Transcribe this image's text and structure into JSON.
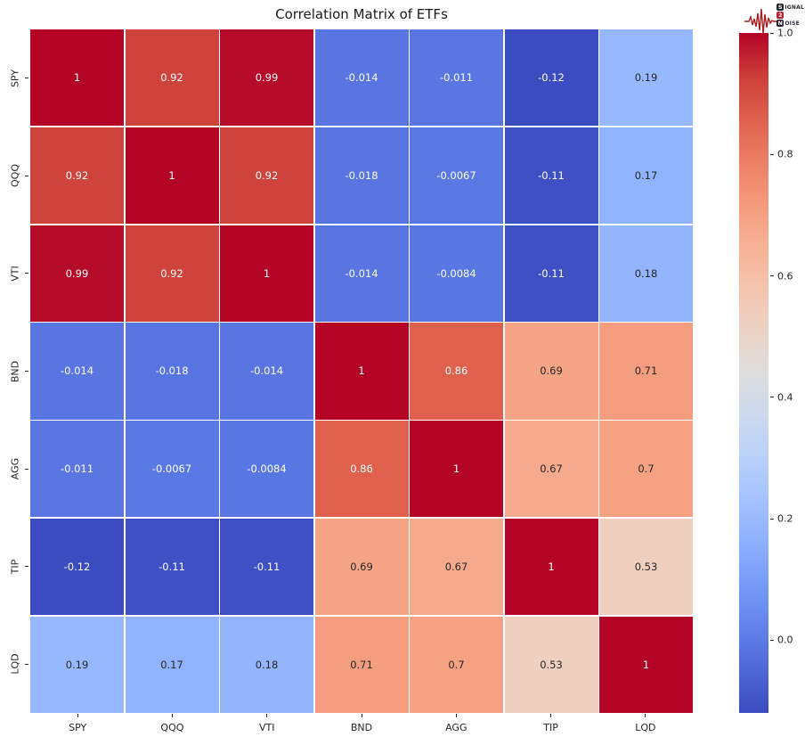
{
  "chart_data": {
    "type": "heatmap",
    "title": "Correlation Matrix of ETFs",
    "x_labels": [
      "SPY",
      "QQQ",
      "VTI",
      "BND",
      "AGG",
      "TIP",
      "LQD"
    ],
    "y_labels": [
      "SPY",
      "QQQ",
      "VTI",
      "BND",
      "AGG",
      "TIP",
      "LQD"
    ],
    "matrix": [
      [
        1,
        0.92,
        0.99,
        -0.014,
        -0.011,
        -0.12,
        0.19
      ],
      [
        0.92,
        1,
        0.92,
        -0.018,
        -0.0067,
        -0.11,
        0.17
      ],
      [
        0.99,
        0.92,
        1,
        -0.014,
        -0.0084,
        -0.11,
        0.18
      ],
      [
        -0.014,
        -0.018,
        -0.014,
        1,
        0.86,
        0.69,
        0.71
      ],
      [
        -0.011,
        -0.0067,
        -0.0084,
        0.86,
        1,
        0.67,
        0.7
      ],
      [
        -0.12,
        -0.11,
        -0.11,
        0.69,
        0.67,
        1,
        0.53
      ],
      [
        0.19,
        0.17,
        0.18,
        0.71,
        0.7,
        0.53,
        1
      ]
    ],
    "vmin": -0.12,
    "vmax": 1.0,
    "colormap": "coolwarm",
    "colormap_stops": [
      {
        "t": 0.0,
        "color": "#3b4cc0"
      },
      {
        "t": 0.0625,
        "color": "#4d68d7"
      },
      {
        "t": 0.125,
        "color": "#6282ea"
      },
      {
        "t": 0.1875,
        "color": "#779af7"
      },
      {
        "t": 0.25,
        "color": "#8db0fe"
      },
      {
        "t": 0.3125,
        "color": "#a3c2ff"
      },
      {
        "t": 0.375,
        "color": "#b8d0f9"
      },
      {
        "t": 0.4375,
        "color": "#ccd9ee"
      },
      {
        "t": 0.5,
        "color": "#dddddd"
      },
      {
        "t": 0.5625,
        "color": "#ecd3c5"
      },
      {
        "t": 0.625,
        "color": "#f5c4ad"
      },
      {
        "t": 0.6875,
        "color": "#f7b194"
      },
      {
        "t": 0.75,
        "color": "#f49a7b"
      },
      {
        "t": 0.8125,
        "color": "#ec7f63"
      },
      {
        "t": 0.875,
        "color": "#de604d"
      },
      {
        "t": 0.9375,
        "color": "#cb3e38"
      },
      {
        "t": 1.0,
        "color": "#b40426"
      }
    ],
    "colorbar_tick_labels": [
      "1.0",
      "0.8",
      "0.6",
      "0.4",
      "0.2",
      "0.0"
    ],
    "colorbar_tick_values": [
      1.0,
      0.8,
      0.6,
      0.4,
      0.2,
      0.0
    ],
    "grid_line_color": "#ffffff",
    "annotation_text_dark": "#262626",
    "annotation_text_light": "#ffffff",
    "legend_position": "right"
  },
  "logo": {
    "badge_s": "S",
    "word1_rest": "IGNAL",
    "badge_2": "2",
    "badge_n": "N",
    "word3_rest": "OISE",
    "accent_color": "#a81e22",
    "badge_dark_color": "#25242c",
    "badge_red_color": "#b41f2e"
  }
}
